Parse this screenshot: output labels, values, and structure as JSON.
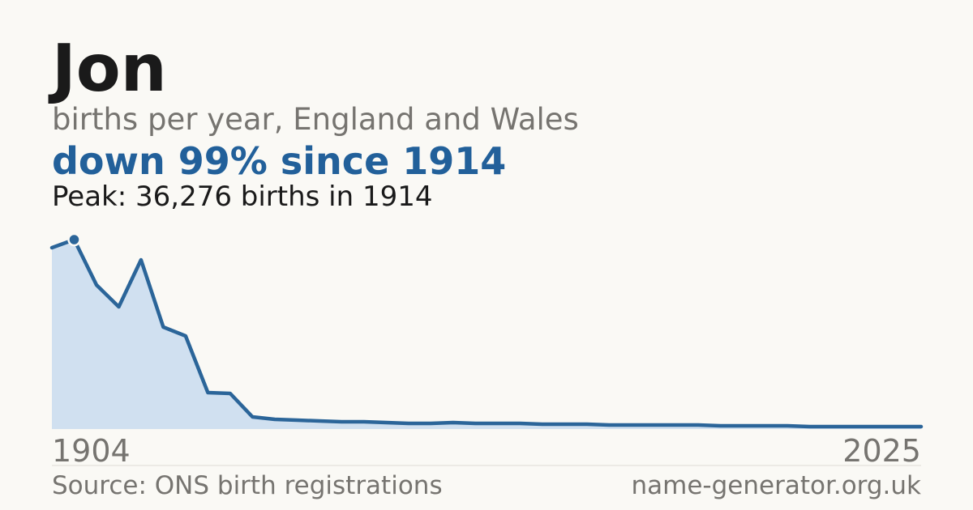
{
  "chart_data": {
    "type": "area",
    "title": "Jon",
    "subtitle": "births per year, England and Wales",
    "headline": "down 99% since 1914",
    "annotation": "Peak: 36,276 births in 1914",
    "source": "Source: ONS birth registrations",
    "site": "name-generator.org.uk",
    "categories": [
      "1904",
      null,
      null,
      null,
      null,
      null,
      null,
      null,
      null,
      null,
      null,
      null,
      null,
      null,
      null,
      null,
      null,
      null,
      null,
      null,
      null,
      null,
      null,
      null,
      null,
      null,
      null,
      null,
      null,
      null,
      null,
      null,
      null,
      null,
      null,
      null,
      null,
      null,
      null,
      "2025"
    ],
    "values": [
      34730,
      36276,
      27600,
      23410,
      32400,
      19530,
      17830,
      6980,
      6820,
      2330,
      1860,
      1700,
      1550,
      1400,
      1400,
      1240,
      1090,
      1090,
      1240,
      1090,
      1090,
      1090,
      930,
      930,
      930,
      780,
      780,
      780,
      780,
      780,
      620,
      620,
      620,
      620,
      470,
      470,
      470,
      470,
      470,
      470
    ],
    "peak_index": 1,
    "color": "#2b6599",
    "fill": "#d0e0f0",
    "ylim": [
      0,
      36276
    ]
  }
}
